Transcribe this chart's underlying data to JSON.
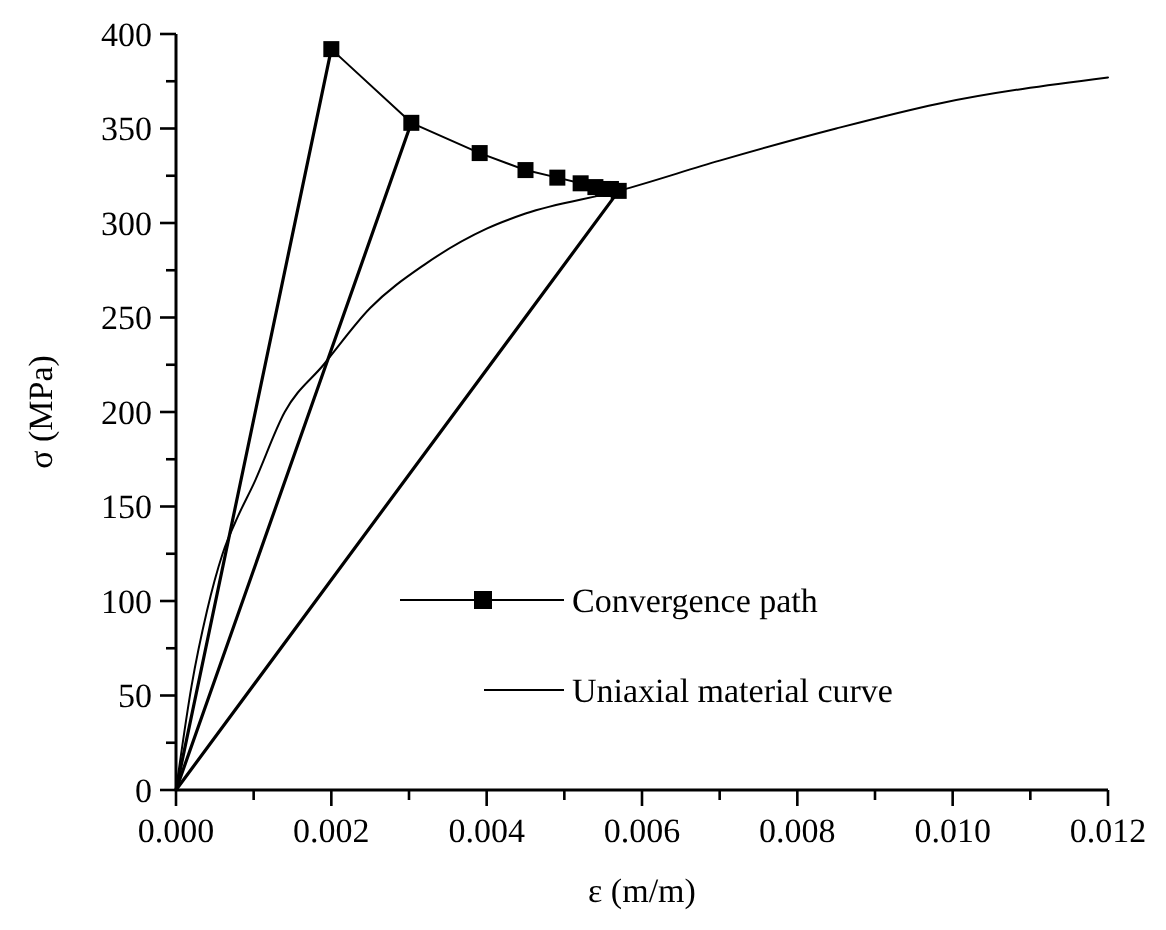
{
  "chart_data": {
    "type": "line",
    "xlabel": "ε (m/m)",
    "ylabel": "σ (MPa)",
    "xlim": [
      0,
      0.012
    ],
    "ylim": [
      0,
      400
    ],
    "xticks": [
      {
        "value": 0,
        "label": "0.000"
      },
      {
        "value": 0.001,
        "label": null
      },
      {
        "value": 0.002,
        "label": "0.002"
      },
      {
        "value": 0.003,
        "label": null
      },
      {
        "value": 0.004,
        "label": "0.004"
      },
      {
        "value": 0.005,
        "label": null
      },
      {
        "value": 0.006,
        "label": "0.006"
      },
      {
        "value": 0.007,
        "label": null
      },
      {
        "value": 0.008,
        "label": "0.008"
      },
      {
        "value": 0.009,
        "label": null
      },
      {
        "value": 0.01,
        "label": "0.010"
      },
      {
        "value": 0.011,
        "label": null
      },
      {
        "value": 0.012,
        "label": "0.012"
      }
    ],
    "yticks": [
      0,
      {
        "value": 25,
        "label": null
      },
      50,
      {
        "value": 75,
        "label": null
      },
      100,
      {
        "value": 125,
        "label": null
      },
      150,
      {
        "value": 175,
        "label": null
      },
      200,
      {
        "value": 225,
        "label": null
      },
      250,
      {
        "value": 275,
        "label": null
      },
      300,
      {
        "value": 325,
        "label": null
      },
      350,
      {
        "value": 375,
        "label": null
      },
      400
    ],
    "grid": false,
    "legend": "bottom",
    "line_style": "solid",
    "series": [
      {
        "name": "Convergence path",
        "color": "#000000",
        "marker": "square",
        "x": [
          0.002,
          0.00303,
          0.00391,
          0.0045,
          0.00491,
          0.00521,
          0.0054,
          0.0055,
          0.0056,
          0.0057
        ],
        "values": [
          392,
          353,
          337,
          328,
          324,
          321,
          319,
          318,
          318,
          317
        ]
      },
      {
        "name": "Uniaxial material curve",
        "color": "#000000",
        "marker": "none",
        "x": [
          0,
          0.0002,
          0.0004,
          0.0006,
          0.0008,
          0.001,
          0.0014,
          0.0019,
          0.0025,
          0.0032,
          0.004,
          0.0045,
          0.0057,
          0.007,
          0.0085,
          0.0098,
          0.012
        ],
        "values": [
          0,
          55,
          95,
          125,
          145,
          162,
          200,
          225,
          255,
          278,
          297,
          305,
          317,
          333,
          350,
          363,
          377
        ]
      },
      {
        "color": "#000000",
        "marker": "none",
        "x": [
          0,
          0.002
        ],
        "values": [
          0,
          392
        ]
      },
      {
        "color": "#000000",
        "marker": "none",
        "x": [
          0,
          0.00303
        ],
        "values": [
          0,
          353
        ]
      },
      {
        "color": "#000000",
        "marker": "none",
        "x": [
          0,
          0.0057
        ],
        "values": [
          0,
          317
        ]
      }
    ]
  }
}
